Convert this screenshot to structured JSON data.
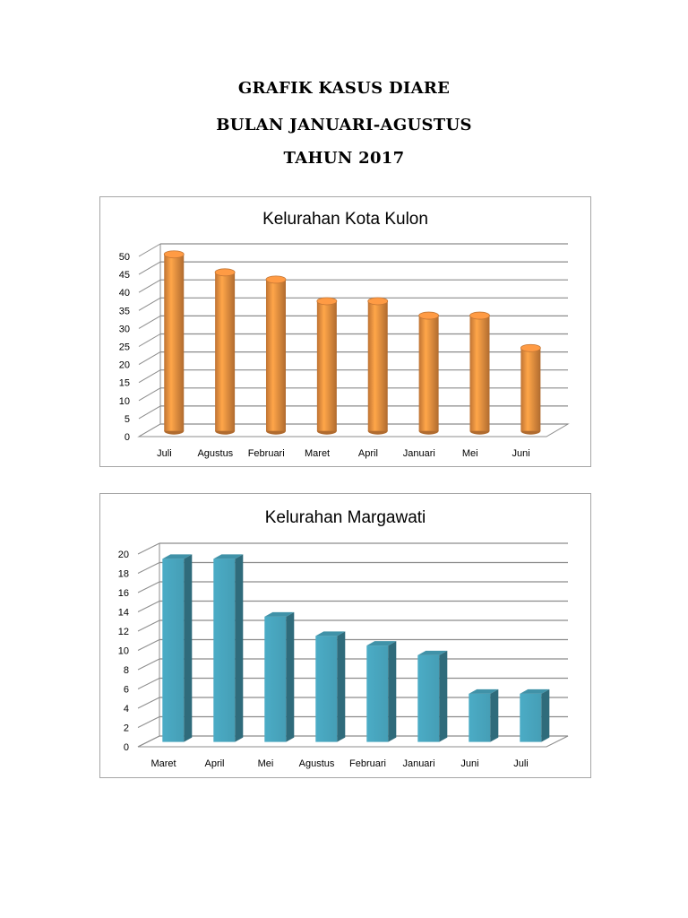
{
  "heading": {
    "line1": "GRAFIK KASUS DIARE",
    "line2": "BULAN JANUARI-AGUSTUS",
    "line3": "TAHUN 2017"
  },
  "chart_data": [
    {
      "type": "bar",
      "style": "3d-cylinder",
      "title": "Kelurahan Kota Kulon",
      "categories": [
        "Juli",
        "Agustus",
        "Februari",
        "Maret",
        "April",
        "Januari",
        "Mei",
        "Juni"
      ],
      "values": [
        49,
        44,
        42,
        36,
        36,
        32,
        32,
        23
      ],
      "ylim": [
        0,
        50
      ],
      "yticks": [
        0,
        5,
        10,
        15,
        20,
        25,
        30,
        35,
        40,
        45,
        50
      ],
      "grid": true,
      "legend": "none",
      "color": "#f59441"
    },
    {
      "type": "bar",
      "style": "3d-box",
      "title": "Kelurahan Margawati",
      "categories": [
        "Maret",
        "April",
        "Mei",
        "Agustus",
        "Februari",
        "Januari",
        "Juni",
        "Juli"
      ],
      "values": [
        19,
        19,
        13,
        11,
        10,
        9,
        5,
        5
      ],
      "ylim": [
        0,
        20
      ],
      "yticks": [
        0,
        2,
        4,
        6,
        8,
        10,
        12,
        14,
        16,
        18,
        20
      ],
      "grid": true,
      "legend": "none",
      "color": "#4bacc6"
    }
  ]
}
